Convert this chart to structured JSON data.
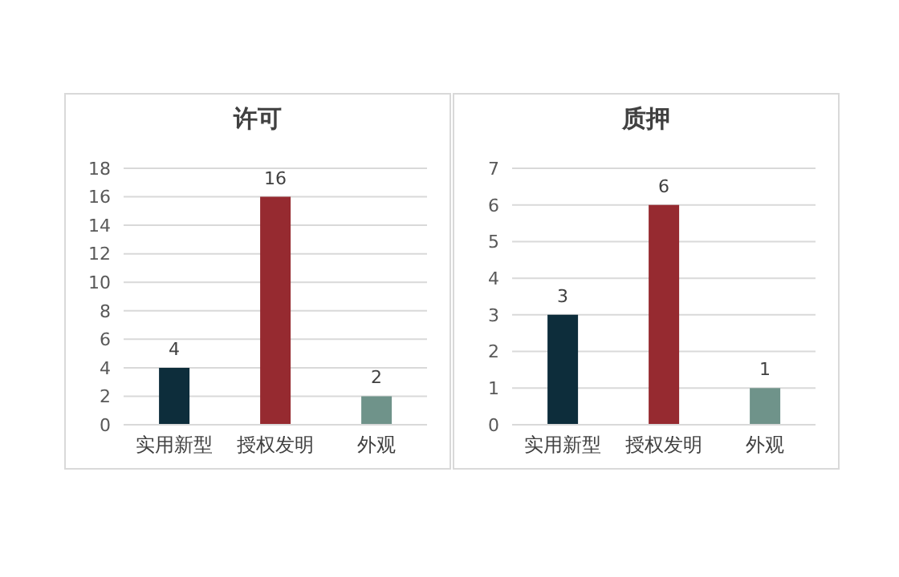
{
  "chart_data": [
    {
      "type": "bar",
      "title": "许可",
      "categories": [
        "实用新型",
        "授权发明",
        "外观"
      ],
      "values": [
        4,
        16,
        2
      ],
      "colors": [
        "#0d2d3b",
        "#962a30",
        "#6f938a"
      ],
      "ylim": [
        0,
        18
      ],
      "yticks": [
        0,
        2,
        4,
        6,
        8,
        10,
        12,
        14,
        16,
        18
      ],
      "grid": "y",
      "data_labels": true
    },
    {
      "type": "bar",
      "title": "质押",
      "categories": [
        "实用新型",
        "授权发明",
        "外观"
      ],
      "values": [
        3,
        6,
        1
      ],
      "colors": [
        "#0d2d3b",
        "#962a30",
        "#6f938a"
      ],
      "ylim": [
        0,
        7
      ],
      "yticks": [
        0,
        1,
        2,
        3,
        4,
        5,
        6,
        7
      ],
      "grid": "y",
      "data_labels": true
    }
  ]
}
